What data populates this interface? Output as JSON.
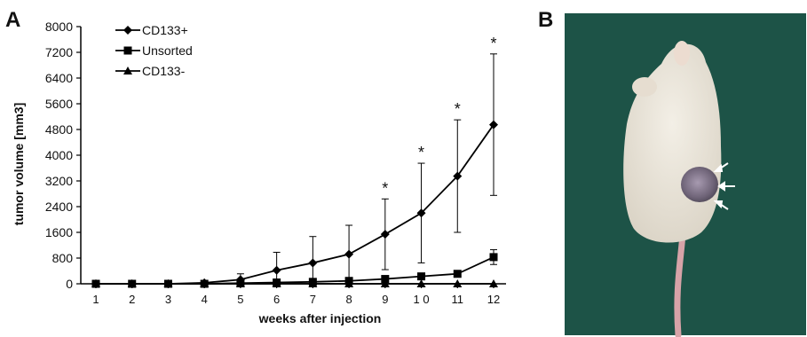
{
  "panels": {
    "a_label": "A",
    "b_label": "B"
  },
  "chart_data": {
    "type": "line",
    "title": "",
    "xlabel": "weeks after injection",
    "ylabel": "tumor volume [mm3]",
    "x": [
      1,
      2,
      3,
      4,
      5,
      6,
      7,
      8,
      9,
      10,
      11,
      12
    ],
    "x_tick_labels": [
      "1",
      "2",
      "3",
      "4",
      "5",
      "6",
      "7",
      "8",
      "9",
      "1 0",
      "11",
      "12"
    ],
    "ylim": [
      0,
      8000
    ],
    "y_ticks": [
      0,
      800,
      1600,
      2400,
      3200,
      4000,
      4800,
      5600,
      6400,
      7200,
      8000
    ],
    "grid": false,
    "legend_position": "top-left",
    "series": [
      {
        "name": "CD133+",
        "marker": "diamond",
        "values": [
          0,
          0,
          0,
          30,
          130,
          420,
          650,
          920,
          1540,
          2200,
          3350,
          4950
        ],
        "error_upper": [
          0,
          0,
          0,
          0,
          180,
          560,
          820,
          900,
          1100,
          1550,
          1750,
          2200
        ],
        "error_lower": [
          0,
          0,
          0,
          0,
          130,
          420,
          650,
          900,
          1100,
          1550,
          1750,
          2200
        ],
        "significance": [
          "",
          "",
          "",
          "",
          "",
          "",
          "",
          "",
          "*",
          "*",
          "*",
          "*"
        ]
      },
      {
        "name": "Unsorted",
        "marker": "square",
        "values": [
          0,
          0,
          0,
          0,
          20,
          40,
          60,
          90,
          150,
          230,
          310,
          830
        ],
        "error_upper": [
          0,
          0,
          0,
          0,
          0,
          0,
          0,
          0,
          0,
          0,
          0,
          230
        ],
        "error_lower": [
          0,
          0,
          0,
          0,
          0,
          0,
          0,
          0,
          0,
          0,
          0,
          230
        ]
      },
      {
        "name": "CD133-",
        "marker": "triangle",
        "values": [
          0,
          0,
          0,
          0,
          0,
          0,
          0,
          0,
          0,
          0,
          0,
          0
        ]
      }
    ],
    "colors": {
      "line": "#000000",
      "photo_background": "#1f5a4c"
    }
  }
}
